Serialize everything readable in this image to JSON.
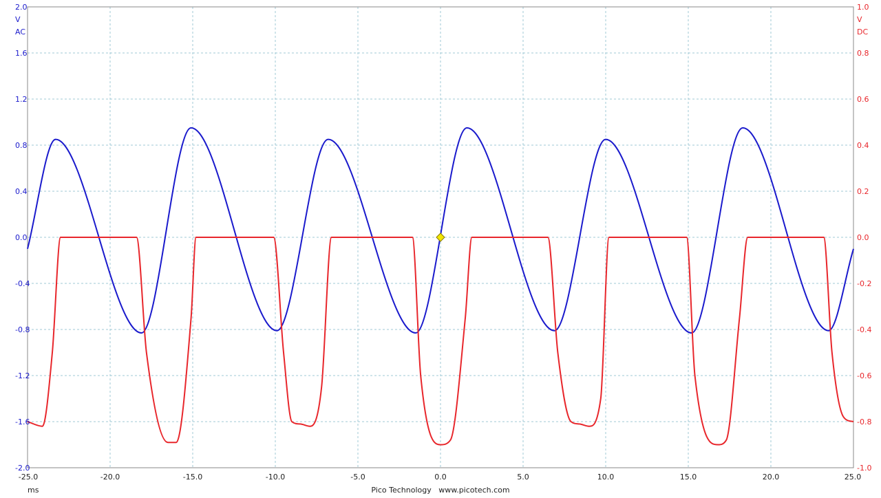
{
  "chart_data": {
    "type": "line",
    "x_axis": {
      "range": [
        -25.0,
        25.0
      ],
      "ticks": [
        "-25.0",
        "-20.0",
        "-15.0",
        "-10.0",
        "-5.0",
        "0.0",
        "5.0",
        "10.0",
        "15.0",
        "20.0",
        "25.0"
      ],
      "unit_label": "ms"
    },
    "left_axis": {
      "range": [
        -2.0,
        2.0
      ],
      "ticks": [
        "2.0",
        "1.6",
        "1.2",
        "0.8",
        "0.4",
        "0.0",
        "-0.4",
        "-0.8",
        "-1.2",
        "-1.6",
        "-2.0"
      ],
      "unit": "V",
      "coupling": "AC",
      "color": "#1a1acc"
    },
    "right_axis": {
      "range": [
        -1.0,
        1.0
      ],
      "ticks": [
        "1.0",
        "0.8",
        "0.6",
        "0.4",
        "0.2",
        "0.0",
        "-0.2",
        "-0.4",
        "-0.6",
        "-0.8",
        "-1.0"
      ],
      "unit": "V",
      "coupling": "DC",
      "color": "#e8262b"
    },
    "grid": true,
    "footer": "Pico Technology   www.picotech.com",
    "trigger_marker": {
      "x": 0.0,
      "y": 0.0,
      "color": "#f2e600"
    },
    "series": [
      {
        "axis": "left",
        "color": "#1a1acc",
        "x": [
          -25.0,
          -23.3,
          -18.1,
          -15.1,
          -9.9,
          -6.8,
          -1.5,
          1.6,
          6.9,
          10.0,
          15.2,
          18.3,
          23.5,
          25.0
        ],
        "y": [
          -0.1,
          0.85,
          -0.83,
          0.95,
          -0.81,
          0.85,
          -0.83,
          0.95,
          -0.81,
          0.85,
          -0.83,
          0.95,
          -0.81,
          -0.1
        ]
      },
      {
        "axis": "right",
        "color": "#e8262b",
        "x": [
          -25.0,
          -24.1,
          -23.5,
          -23.0,
          -18.4,
          -17.8,
          -16.5,
          -16.0,
          -15.1,
          -14.8,
          -10.1,
          -9.5,
          -9.0,
          -8.5,
          -7.9,
          -7.2,
          -6.6,
          -1.7,
          -1.2,
          0.0,
          0.6,
          1.5,
          1.9,
          6.5,
          7.1,
          7.9,
          8.4,
          9.0,
          9.7,
          10.2,
          14.9,
          15.4,
          16.8,
          17.3,
          18.1,
          18.6,
          23.2,
          23.7,
          24.4,
          25.0
        ],
        "y": [
          -0.8,
          -0.82,
          -0.5,
          0.0,
          0.0,
          -0.5,
          -0.89,
          -0.89,
          -0.35,
          0.0,
          0.0,
          -0.5,
          -0.8,
          -0.81,
          -0.82,
          -0.65,
          0.0,
          0.0,
          -0.6,
          -0.9,
          -0.88,
          -0.35,
          0.0,
          0.0,
          -0.5,
          -0.8,
          -0.81,
          -0.82,
          -0.7,
          0.0,
          0.0,
          -0.6,
          -0.9,
          -0.88,
          -0.35,
          0.0,
          0.0,
          -0.5,
          -0.78,
          -0.8
        ]
      }
    ]
  }
}
